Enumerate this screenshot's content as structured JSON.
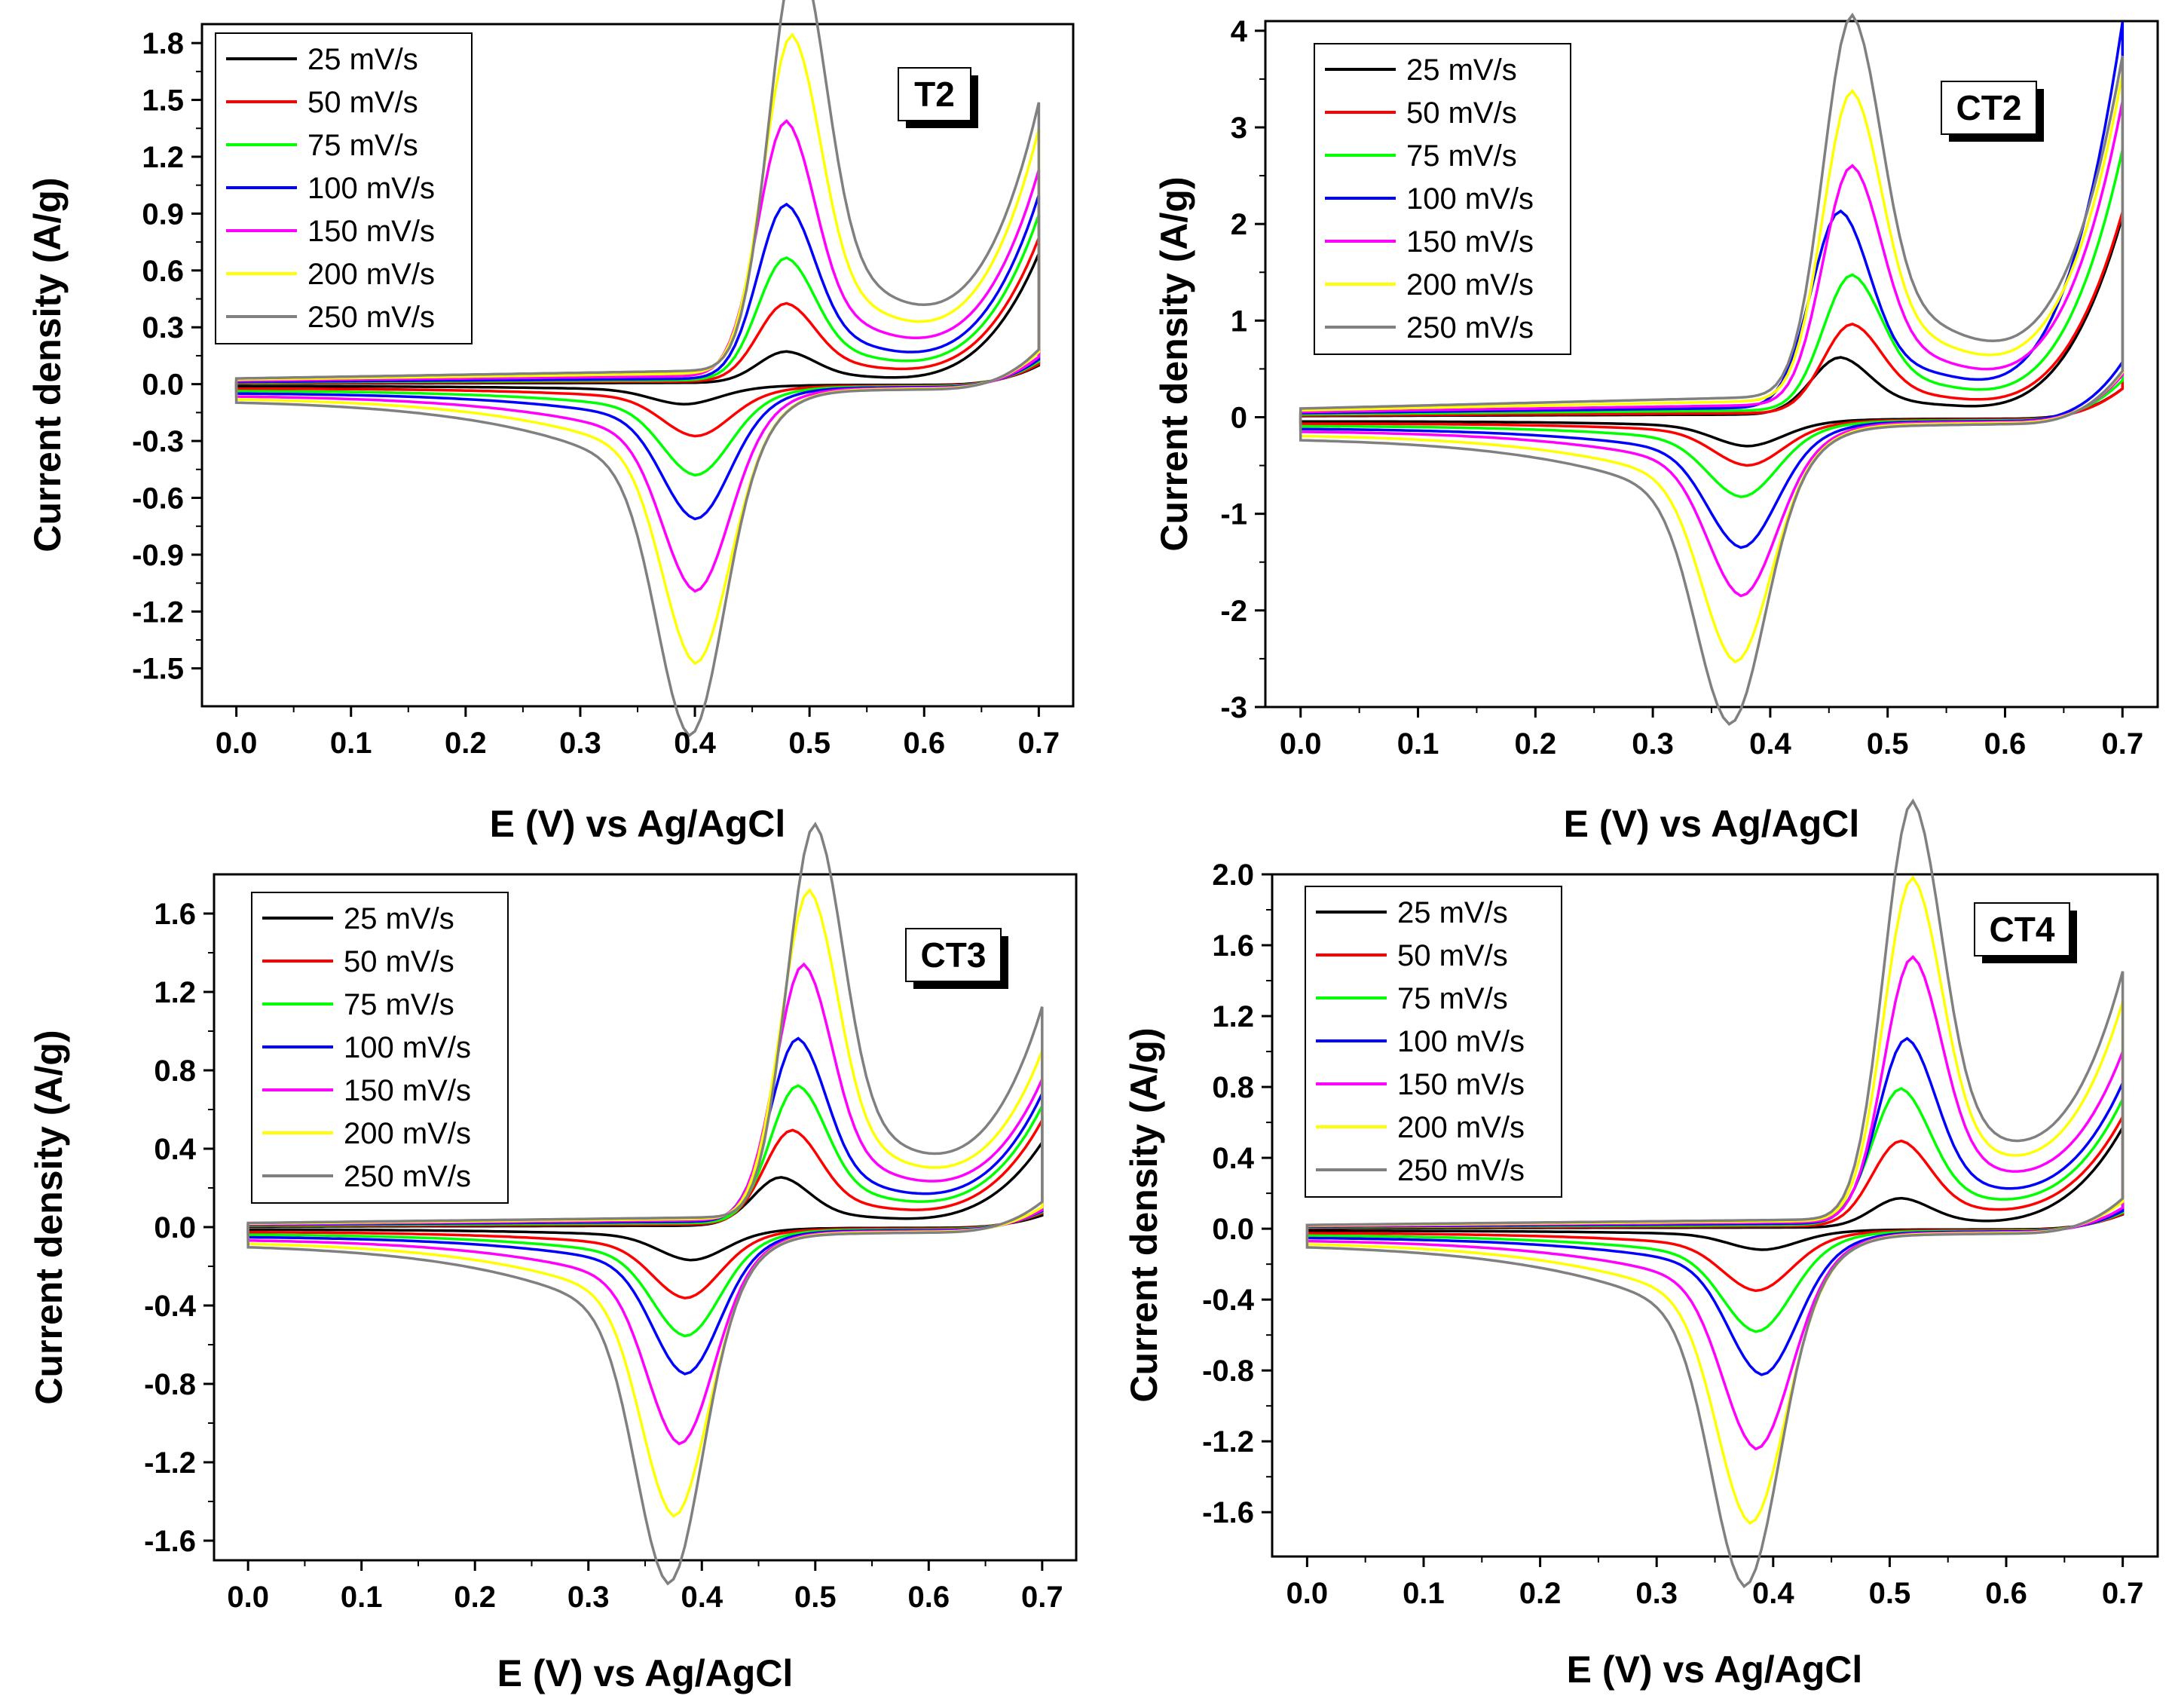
{
  "chart_data": [
    {
      "type": "line",
      "sample_label": "T2",
      "xlabel": "E (V) vs Ag/AgCl",
      "ylabel": "Current density (A/g)",
      "xlim": [
        -0.03,
        0.73
      ],
      "ylim": [
        -1.7,
        1.9
      ],
      "xticks": [
        "0.0",
        "0.1",
        "0.2",
        "0.3",
        "0.4",
        "0.5",
        "0.6",
        "0.7"
      ],
      "yticks": [
        "-1.5",
        "-1.2",
        "-0.9",
        "-0.6",
        "-0.3",
        "0.0",
        "0.3",
        "0.6",
        "0.9",
        "1.2",
        "1.5",
        "1.8"
      ],
      "legend_position": "top-left",
      "series": [
        {
          "name": "25 mV/s",
          "color": "#000000",
          "ox": 0.48,
          "oy": 0.12,
          "ry": -0.08,
          "base_a": 0.01,
          "base_c": -0.01,
          "end": 0.68,
          "rx": 0.39
        },
        {
          "name": "50 mV/s",
          "color": "#ff0000",
          "ox": 0.48,
          "oy": 0.3,
          "ry": -0.21,
          "base_a": 0.02,
          "base_c": -0.02,
          "end": 0.75,
          "rx": 0.4
        },
        {
          "name": "75 mV/s",
          "color": "#00ff00",
          "ox": 0.48,
          "oy": 0.47,
          "ry": -0.37,
          "base_a": 0.03,
          "base_c": -0.03,
          "end": 0.86,
          "rx": 0.4
        },
        {
          "name": "100 mV/s",
          "color": "#0000ff",
          "ox": 0.48,
          "oy": 0.67,
          "ry": -0.55,
          "base_a": 0.04,
          "base_c": -0.04,
          "end": 0.95,
          "rx": 0.4
        },
        {
          "name": "150 mV/s",
          "color": "#ff00ff",
          "ox": 0.48,
          "oy": 0.98,
          "ry": -0.85,
          "base_a": 0.06,
          "base_c": -0.05,
          "end": 1.06,
          "rx": 0.4
        },
        {
          "name": "200 mV/s",
          "color": "#ffff00",
          "ox": 0.485,
          "oy": 1.3,
          "ry": -1.15,
          "base_a": 0.08,
          "base_c": -0.06,
          "end": 1.25,
          "rx": 0.4
        },
        {
          "name": "250 mV/s",
          "color": "#808080",
          "ox": 0.49,
          "oy": 1.62,
          "ry": -1.45,
          "base_a": 0.1,
          "base_c": -0.07,
          "end": 1.36,
          "rx": 0.395
        }
      ]
    },
    {
      "type": "line",
      "sample_label": "CT2",
      "xlabel": "E (V) vs Ag/AgCl",
      "ylabel": "Current density (A/g)",
      "xlim": [
        -0.03,
        0.73
      ],
      "ylim": [
        -3.0,
        4.1
      ],
      "xticks": [
        "0.0",
        "0.1",
        "0.2",
        "0.3",
        "0.4",
        "0.5",
        "0.6",
        "0.7"
      ],
      "yticks": [
        "-3",
        "-2",
        "-1",
        "0",
        "1",
        "2",
        "3",
        "4"
      ],
      "legend_position": "top-left",
      "series": [
        {
          "name": "25 mV/s",
          "color": "#000000",
          "ox": 0.46,
          "oy": 0.43,
          "ry": -0.22,
          "base_a": 0.04,
          "base_c": -0.04,
          "end": 2.05,
          "rx": 0.38
        },
        {
          "name": "50 mV/s",
          "color": "#ff0000",
          "ox": 0.47,
          "oy": 0.67,
          "ry": -0.37,
          "base_a": 0.06,
          "base_c": -0.06,
          "end": 2.08,
          "rx": 0.38
        },
        {
          "name": "75 mV/s",
          "color": "#00ff00",
          "ox": 0.47,
          "oy": 1.02,
          "ry": -0.62,
          "base_a": 0.1,
          "base_c": -0.08,
          "end": 2.7,
          "rx": 0.375
        },
        {
          "name": "100 mV/s",
          "color": "#0000ff",
          "ox": 0.46,
          "oy": 1.48,
          "ry": -1.03,
          "base_a": 0.14,
          "base_c": -0.1,
          "end": 4.0,
          "rx": 0.375
        },
        {
          "name": "150 mV/s",
          "color": "#ff00ff",
          "ox": 0.47,
          "oy": 1.8,
          "ry": -1.42,
          "base_a": 0.18,
          "base_c": -0.12,
          "end": 3.15,
          "rx": 0.375
        },
        {
          "name": "200 mV/s",
          "color": "#ffff00",
          "ox": 0.47,
          "oy": 2.33,
          "ry": -1.95,
          "base_a": 0.24,
          "base_c": -0.15,
          "end": 3.4,
          "rx": 0.37
        },
        {
          "name": "250 mV/s",
          "color": "#808080",
          "ox": 0.47,
          "oy": 2.87,
          "ry": -2.45,
          "base_a": 0.3,
          "base_c": -0.18,
          "end": 3.55,
          "rx": 0.365
        }
      ]
    },
    {
      "type": "line",
      "sample_label": "CT3",
      "xlabel": "E (V) vs Ag/AgCl",
      "ylabel": "Current density (A/g)",
      "xlim": [
        -0.03,
        0.73
      ],
      "ylim": [
        -1.7,
        1.8
      ],
      "xticks": [
        "0.0",
        "0.1",
        "0.2",
        "0.3",
        "0.4",
        "0.5",
        "0.6",
        "0.7"
      ],
      "yticks": [
        "-1.6",
        "-1.2",
        "-0.8",
        "-0.4",
        "0.0",
        "0.4",
        "0.8",
        "1.2",
        "1.6"
      ],
      "legend_position": "top-left",
      "series": [
        {
          "name": "25 mV/s",
          "color": "#000000",
          "ox": 0.47,
          "oy": 0.18,
          "ry": -0.13,
          "base_a": 0.01,
          "base_c": -0.01,
          "end": 0.42,
          "rx": 0.39
        },
        {
          "name": "50 mV/s",
          "color": "#ff0000",
          "ox": 0.48,
          "oy": 0.35,
          "ry": -0.28,
          "base_a": 0.02,
          "base_c": -0.02,
          "end": 0.52,
          "rx": 0.385
        },
        {
          "name": "75 mV/s",
          "color": "#00ff00",
          "ox": 0.485,
          "oy": 0.51,
          "ry": -0.43,
          "base_a": 0.03,
          "base_c": -0.03,
          "end": 0.58,
          "rx": 0.385
        },
        {
          "name": "100 mV/s",
          "color": "#0000ff",
          "ox": 0.485,
          "oy": 0.68,
          "ry": -0.58,
          "base_a": 0.04,
          "base_c": -0.04,
          "end": 0.63,
          "rx": 0.385
        },
        {
          "name": "150 mV/s",
          "color": "#ff00ff",
          "ox": 0.49,
          "oy": 0.95,
          "ry": -0.86,
          "base_a": 0.05,
          "base_c": -0.05,
          "end": 0.68,
          "rx": 0.38
        },
        {
          "name": "200 mV/s",
          "color": "#ffff00",
          "ox": 0.495,
          "oy": 1.22,
          "ry": -1.15,
          "base_a": 0.06,
          "base_c": -0.06,
          "end": 0.8,
          "rx": 0.375
        },
        {
          "name": "250 mV/s",
          "color": "#808080",
          "ox": 0.5,
          "oy": 1.46,
          "ry": -1.42,
          "base_a": 0.07,
          "base_c": -0.07,
          "end": 1.0,
          "rx": 0.37
        }
      ]
    },
    {
      "type": "line",
      "sample_label": "CT4",
      "xlabel": "E (V) vs Ag/AgCl",
      "ylabel": "Current density (A/g)",
      "xlim": [
        -0.03,
        0.73
      ],
      "ylim": [
        -1.85,
        2.0
      ],
      "xticks": [
        "0.0",
        "0.1",
        "0.2",
        "0.3",
        "0.4",
        "0.5",
        "0.6",
        "0.7"
      ],
      "yticks": [
        "-1.6",
        "-1.2",
        "-0.8",
        "-0.4",
        "0.0",
        "0.4",
        "0.8",
        "1.2",
        "1.6",
        "2.0"
      ],
      "legend_position": "top-left",
      "series": [
        {
          "name": "25 mV/s",
          "color": "#000000",
          "ox": 0.51,
          "oy": 0.12,
          "ry": -0.09,
          "base_a": 0.01,
          "base_c": -0.01,
          "end": 0.56,
          "rx": 0.39
        },
        {
          "name": "50 mV/s",
          "color": "#ff0000",
          "ox": 0.51,
          "oy": 0.35,
          "ry": -0.27,
          "base_a": 0.02,
          "base_c": -0.02,
          "end": 0.6,
          "rx": 0.385
        },
        {
          "name": "75 mV/s",
          "color": "#00ff00",
          "ox": 0.51,
          "oy": 0.56,
          "ry": -0.45,
          "base_a": 0.03,
          "base_c": -0.03,
          "end": 0.68,
          "rx": 0.385
        },
        {
          "name": "100 mV/s",
          "color": "#0000ff",
          "ox": 0.515,
          "oy": 0.76,
          "ry": -0.64,
          "base_a": 0.04,
          "base_c": -0.04,
          "end": 0.75,
          "rx": 0.39
        },
        {
          "name": "150 mV/s",
          "color": "#ff00ff",
          "ox": 0.52,
          "oy": 1.09,
          "ry": -0.97,
          "base_a": 0.05,
          "base_c": -0.05,
          "end": 0.89,
          "rx": 0.385
        },
        {
          "name": "200 mV/s",
          "color": "#ffff00",
          "ox": 0.52,
          "oy": 1.41,
          "ry": -1.3,
          "base_a": 0.06,
          "base_c": -0.06,
          "end": 1.14,
          "rx": 0.38
        },
        {
          "name": "250 mV/s",
          "color": "#808080",
          "ox": 0.52,
          "oy": 1.72,
          "ry": -1.58,
          "base_a": 0.07,
          "base_c": -0.07,
          "end": 1.28,
          "rx": 0.375
        }
      ]
    }
  ]
}
